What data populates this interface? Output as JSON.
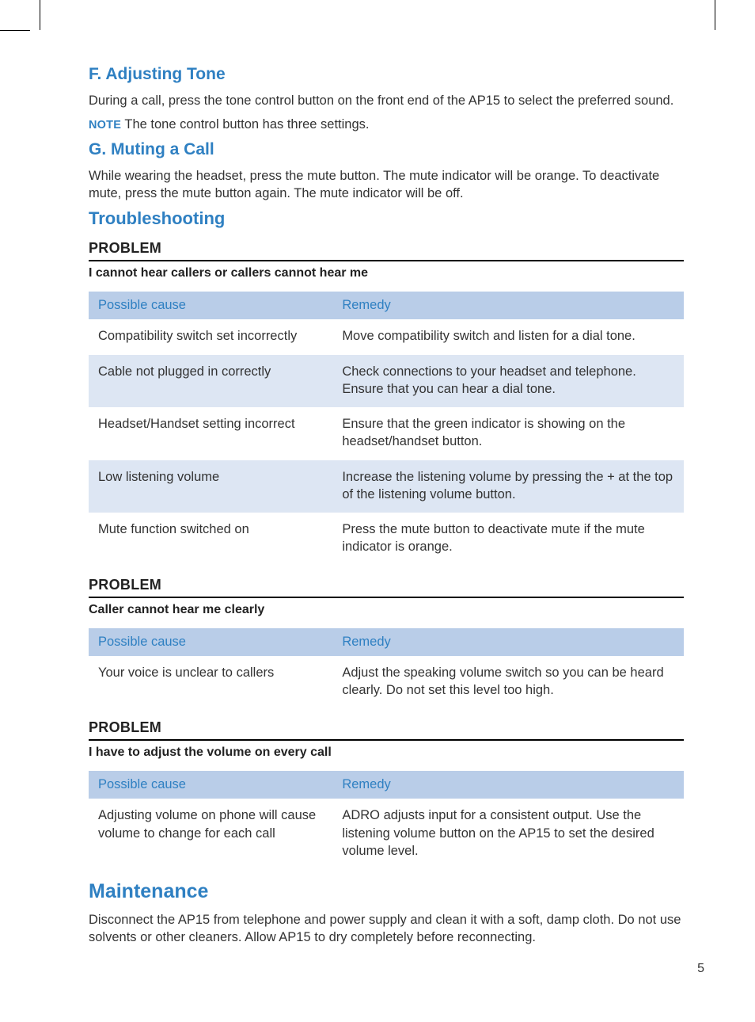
{
  "colors": {
    "accent_blue": "#2f80c2",
    "table_header_bg": "#b9cde8",
    "table_alt_bg": "#dde6f3",
    "body_text": "#333333",
    "rule": "#000000",
    "background": "#ffffff"
  },
  "typography": {
    "body_fontsize_pt": 12,
    "heading_fontsize_pt": 16,
    "note_label_fontsize_pt": 11
  },
  "page_number": "5",
  "sections": {
    "f": {
      "heading": "F. Adjusting Tone",
      "body": "During a call, press the tone control button on the front end of the AP15 to select the preferred sound.",
      "note_label": "NOTE",
      "note_text": " The tone control button has three settings."
    },
    "g": {
      "heading": "G. Muting a Call",
      "body": "While wearing the headset, press the mute button. The mute indicator will be orange. To deactivate mute, press the mute button again. The mute indicator will be off."
    },
    "troubleshooting": {
      "heading": "Troubleshooting",
      "problem_label": "PROBLEM",
      "problems": [
        {
          "desc": "I cannot hear callers or callers cannot hear me",
          "columns": [
            "Possible cause",
            "Remedy"
          ],
          "rows": [
            {
              "cause": "Compatibility switch set incorrectly",
              "remedy": "Move compatibility switch and listen for a dial tone."
            },
            {
              "cause": "Cable not plugged in correctly",
              "remedy": "Check connections to your headset and telephone. Ensure that you can hear a dial tone."
            },
            {
              "cause": "Headset/Handset setting incorrect",
              "remedy": "Ensure that the green indicator is showing on the headset/handset button."
            },
            {
              "cause": "Low listening volume",
              "remedy": "Increase the listening volume by pressing the + at the top of the listening volume button."
            },
            {
              "cause": "Mute function switched on",
              "remedy": "Press the mute button to deactivate mute if the mute indicator is orange."
            }
          ]
        },
        {
          "desc": "Caller cannot hear me clearly",
          "columns": [
            "Possible cause",
            "Remedy"
          ],
          "rows": [
            {
              "cause": "Your voice is unclear to callers",
              "remedy": "Adjust the speaking volume switch so you can be heard clearly. Do not set this level too high."
            }
          ]
        },
        {
          "desc": "I have to adjust the volume on every call",
          "columns": [
            "Possible cause",
            "Remedy"
          ],
          "rows": [
            {
              "cause": "Adjusting volume on phone will cause volume to change for each call",
              "remedy": "ADRO adjusts input for a consistent output. Use the listening volume button on the AP15 to set the desired volume level."
            }
          ]
        }
      ]
    },
    "maintenance": {
      "heading": "Maintenance",
      "body": "Disconnect the AP15 from telephone and power supply and clean it with a soft, damp cloth. Do not use solvents or other cleaners. Allow AP15 to dry completely before reconnecting."
    }
  }
}
